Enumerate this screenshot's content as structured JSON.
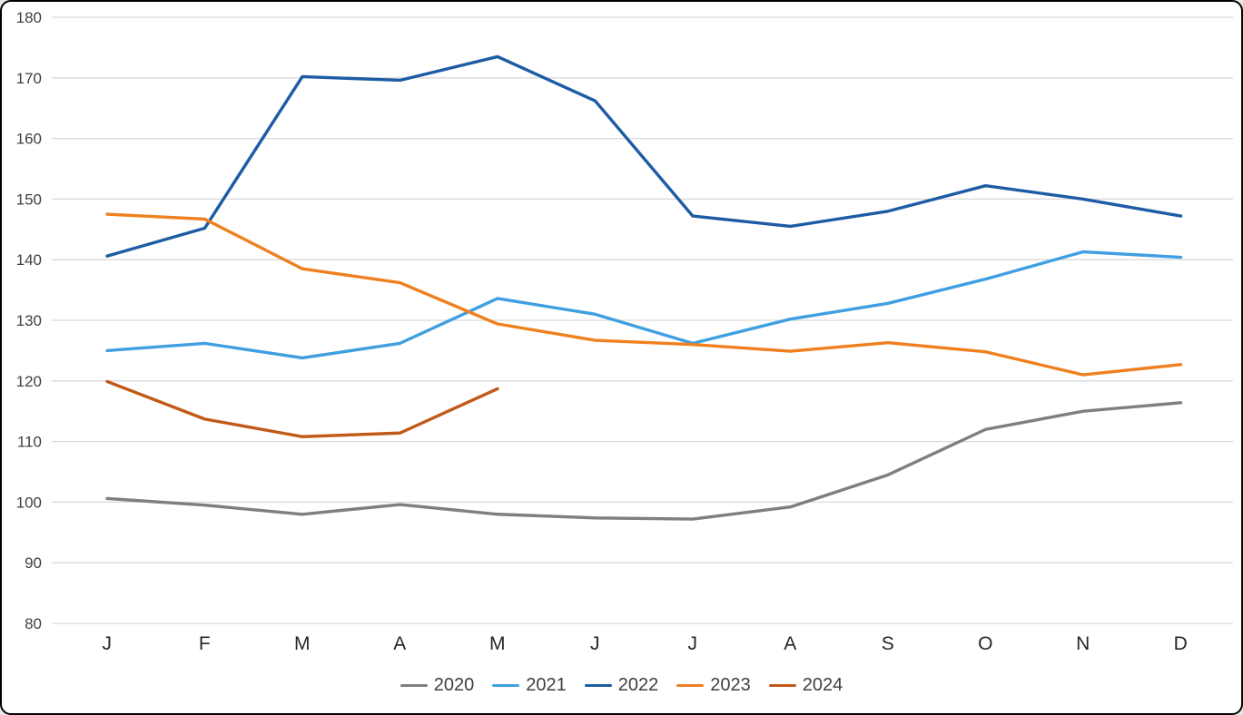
{
  "chart": {
    "background": "#ffffff",
    "border_color": "#000000",
    "grid_color": "#d9d9d9",
    "y_tick_color": "#404040",
    "x_label_color": "#262626",
    "legend_text_color": "#404040"
  },
  "chart_data": {
    "type": "line",
    "title": "",
    "xlabel": "",
    "ylabel": "",
    "grid": true,
    "legend_position": "bottom",
    "ylim": [
      80,
      180
    ],
    "y_ticks": [
      80,
      90,
      100,
      110,
      120,
      130,
      140,
      150,
      160,
      170,
      180
    ],
    "categories": [
      "J",
      "F",
      "M",
      "A",
      "M",
      "J",
      "J",
      "A",
      "S",
      "O",
      "N",
      "D"
    ],
    "series": [
      {
        "name": "2020",
        "color": "#7f7f7f",
        "values": [
          100.6,
          99.5,
          98.0,
          99.6,
          98.0,
          97.4,
          97.2,
          99.2,
          104.5,
          112.0,
          115.0,
          116.4
        ]
      },
      {
        "name": "2021",
        "color": "#3f9fe0",
        "values": [
          125.0,
          126.2,
          123.8,
          126.2,
          133.6,
          131.0,
          126.2,
          130.2,
          132.8,
          136.8,
          141.3,
          140.4
        ]
      },
      {
        "name": "2022",
        "color": "#1d5ca4",
        "values": [
          140.6,
          145.2,
          170.2,
          169.6,
          173.5,
          166.2,
          147.2,
          145.5,
          148.0,
          152.2,
          150.0,
          147.2
        ]
      },
      {
        "name": "2023",
        "color": "#f0801f",
        "values": [
          147.5,
          146.7,
          138.5,
          136.2,
          129.4,
          126.7,
          126.0,
          124.9,
          126.3,
          124.8,
          121.0,
          122.7
        ]
      },
      {
        "name": "2024",
        "color": "#c05a18",
        "values": [
          119.9,
          113.7,
          110.8,
          111.4,
          118.7,
          null,
          null,
          null,
          null,
          null,
          null,
          null
        ]
      }
    ]
  }
}
